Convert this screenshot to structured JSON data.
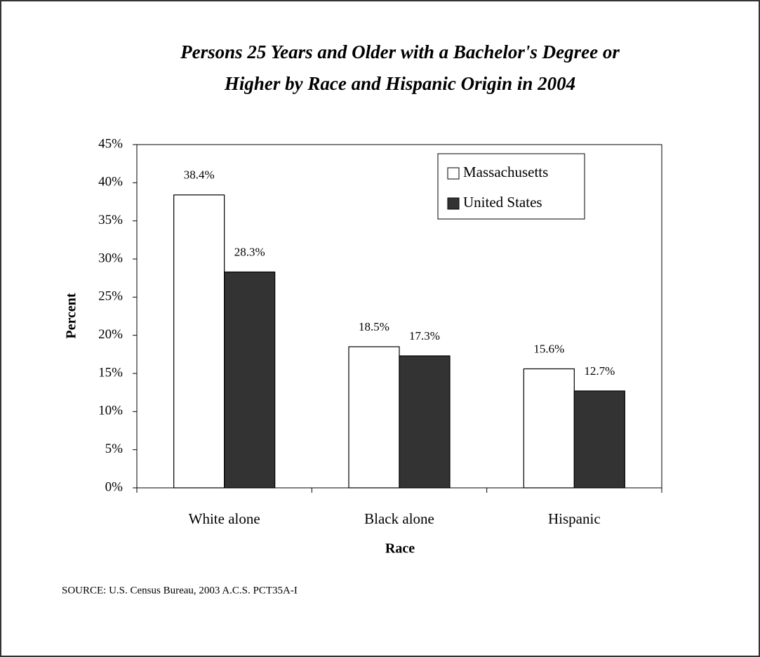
{
  "chart_data": {
    "type": "bar",
    "title": [
      "Persons 25 Years and Older with a Bachelor's Degree or",
      "Higher by Race and Hispanic Origin in 2004"
    ],
    "x_label": "Race",
    "y_label": "Percent",
    "categories": [
      "White alone",
      "Black alone",
      "Hispanic"
    ],
    "series": [
      {
        "name": "Massachusetts",
        "color": "#ffffff",
        "values": [
          38.4,
          18.5,
          15.6
        ],
        "value_labels": [
          "38.4%",
          "18.5%",
          "15.6%"
        ]
      },
      {
        "name": "United States",
        "color": "#333333",
        "values": [
          28.3,
          17.3,
          12.7
        ],
        "value_labels": [
          "28.3%",
          "17.3%",
          "12.7%"
        ]
      }
    ],
    "ylim": [
      0,
      45
    ],
    "yticks": [
      {
        "value": 0,
        "label": "0%"
      },
      {
        "value": 5,
        "label": "5%"
      },
      {
        "value": 10,
        "label": "10%"
      },
      {
        "value": 15,
        "label": "15%"
      },
      {
        "value": 20,
        "label": "20%"
      },
      {
        "value": 25,
        "label": "25%"
      },
      {
        "value": 30,
        "label": "30%"
      },
      {
        "value": 35,
        "label": "35%"
      },
      {
        "value": 40,
        "label": "40%"
      },
      {
        "value": 45,
        "label": "45%"
      }
    ],
    "source": "SOURCE: U.S. Census Bureau, 2003 A.C.S. PCT35A-I"
  }
}
